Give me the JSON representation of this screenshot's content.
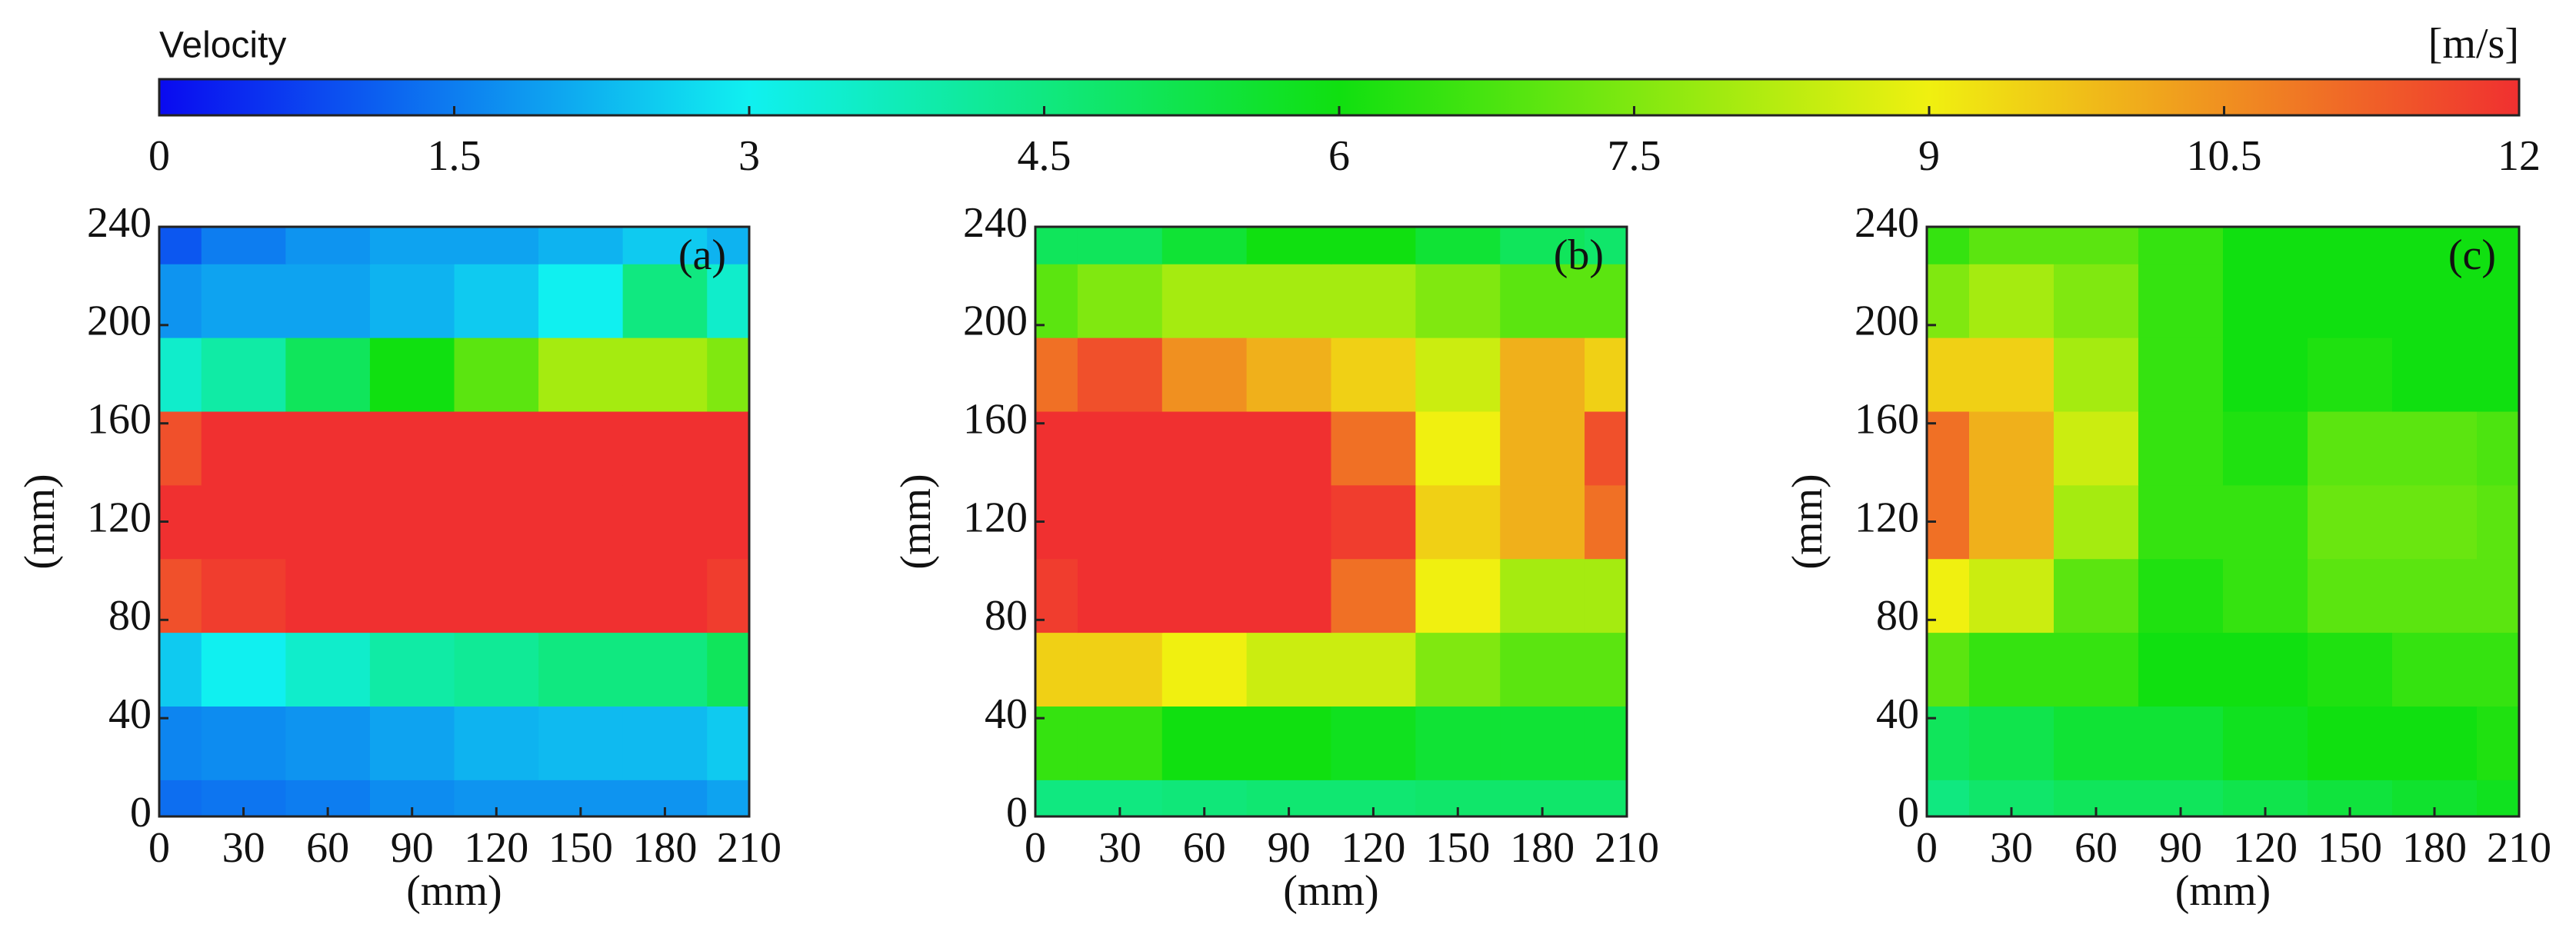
{
  "colorbar": {
    "label": "Velocity",
    "unit": "[m/s]",
    "lim": [
      0,
      12
    ],
    "ticks": [
      0,
      1.5,
      3,
      4.5,
      6,
      7.5,
      9,
      10.5,
      12
    ],
    "colormap": [
      "#0a0af0",
      "#10f0f0",
      "#10e010",
      "#f0f010",
      "#f03030"
    ]
  },
  "chart_data": [
    {
      "type": "heatmap",
      "label": "(a)",
      "xlabel": "(mm)",
      "ylabel": "(mm)",
      "x": [
        0,
        30,
        60,
        90,
        120,
        150,
        180,
        210
      ],
      "y": [
        0,
        30,
        60,
        90,
        120,
        150,
        180,
        210,
        240
      ],
      "xlim": [
        0,
        210
      ],
      "ylim": [
        0,
        240
      ],
      "xticks": [
        0,
        30,
        60,
        90,
        120,
        150,
        180,
        210
      ],
      "yticks": [
        0,
        40,
        80,
        120,
        160,
        200,
        240
      ],
      "values": [
        [
          1.3,
          1.4,
          1.5,
          1.7,
          1.8,
          1.8,
          1.8,
          2.0
        ],
        [
          1.6,
          1.7,
          1.8,
          2.0,
          2.2,
          2.3,
          2.3,
          2.5
        ],
        [
          2.5,
          3,
          3.5,
          4,
          4.2,
          4.5,
          4.5,
          5
        ],
        [
          11.5,
          11.8,
          12,
          12,
          12,
          12,
          12,
          11.8
        ],
        [
          12,
          12,
          12,
          12,
          12,
          12,
          12,
          12
        ],
        [
          11.5,
          12,
          12,
          12,
          12,
          12,
          12,
          12
        ],
        [
          3.5,
          4,
          5,
          6,
          7,
          8,
          8,
          7.5
        ],
        [
          1.8,
          2,
          2,
          2.2,
          2.5,
          3,
          4.5,
          3.5
        ],
        [
          1.0,
          1.5,
          1.8,
          2,
          2,
          2.2,
          2.5,
          2.2
        ]
      ]
    },
    {
      "type": "heatmap",
      "label": "(b)",
      "xlabel": "(mm)",
      "ylabel": "(mm)",
      "x": [
        0,
        30,
        60,
        90,
        120,
        150,
        180,
        210
      ],
      "y": [
        0,
        30,
        60,
        90,
        120,
        150,
        180,
        210,
        240
      ],
      "xlim": [
        0,
        210
      ],
      "ylim": [
        0,
        240
      ],
      "xticks": [
        0,
        30,
        60,
        90,
        120,
        150,
        180,
        210
      ],
      "yticks": [
        0,
        40,
        80,
        120,
        160,
        200,
        240
      ],
      "values": [
        [
          4.5,
          4.5,
          4.6,
          4.7,
          4.7,
          4.8,
          4.8,
          4.8
        ],
        [
          6.5,
          6.5,
          6,
          6,
          5.8,
          5.5,
          5.5,
          5.5
        ],
        [
          9.5,
          9.5,
          9,
          8.5,
          8.5,
          7.5,
          7,
          7
        ],
        [
          11.8,
          12,
          12,
          12,
          11,
          9,
          8,
          8
        ],
        [
          12,
          12,
          12,
          12,
          11.8,
          9.5,
          10,
          11
        ],
        [
          12,
          12,
          12,
          12,
          11,
          9,
          10,
          11.5
        ],
        [
          11,
          11.5,
          10.5,
          10,
          9.5,
          8.5,
          10,
          9.5
        ],
        [
          7,
          7.5,
          8,
          8,
          8,
          7.5,
          7,
          7
        ],
        [
          5,
          5,
          5.5,
          6,
          6,
          5.5,
          5,
          4.8
        ]
      ]
    },
    {
      "type": "heatmap",
      "label": "(c)",
      "xlabel": "(mm)",
      "ylabel": "(mm)",
      "x": [
        0,
        30,
        60,
        90,
        120,
        150,
        180,
        210
      ],
      "y": [
        0,
        30,
        60,
        90,
        120,
        150,
        180,
        210,
        240
      ],
      "xlim": [
        0,
        210
      ],
      "ylim": [
        0,
        240
      ],
      "xticks": [
        0,
        30,
        60,
        90,
        120,
        150,
        180,
        210
      ],
      "yticks": [
        0,
        40,
        80,
        120,
        160,
        200,
        240
      ],
      "values": [
        [
          4.5,
          4.8,
          5,
          5,
          5.2,
          5.4,
          5.6,
          5.8
        ],
        [
          5,
          5.2,
          5.5,
          5.5,
          5.8,
          6,
          6,
          6.2
        ],
        [
          7,
          6.5,
          6.5,
          6,
          6,
          6.2,
          6.5,
          6.5
        ],
        [
          9,
          8.5,
          7,
          6.2,
          6.5,
          7,
          7,
          7
        ],
        [
          11,
          10,
          8,
          6.5,
          6.5,
          7.2,
          7.2,
          7
        ],
        [
          11,
          10,
          8.5,
          6.5,
          6.2,
          7,
          7,
          6.8
        ],
        [
          9.5,
          9.5,
          8,
          6.5,
          6,
          6.2,
          6,
          6
        ],
        [
          7.5,
          8,
          7.5,
          6.5,
          6,
          6,
          6,
          6
        ],
        [
          6.5,
          7,
          7,
          6.5,
          6,
          6,
          6,
          6
        ]
      ]
    }
  ]
}
